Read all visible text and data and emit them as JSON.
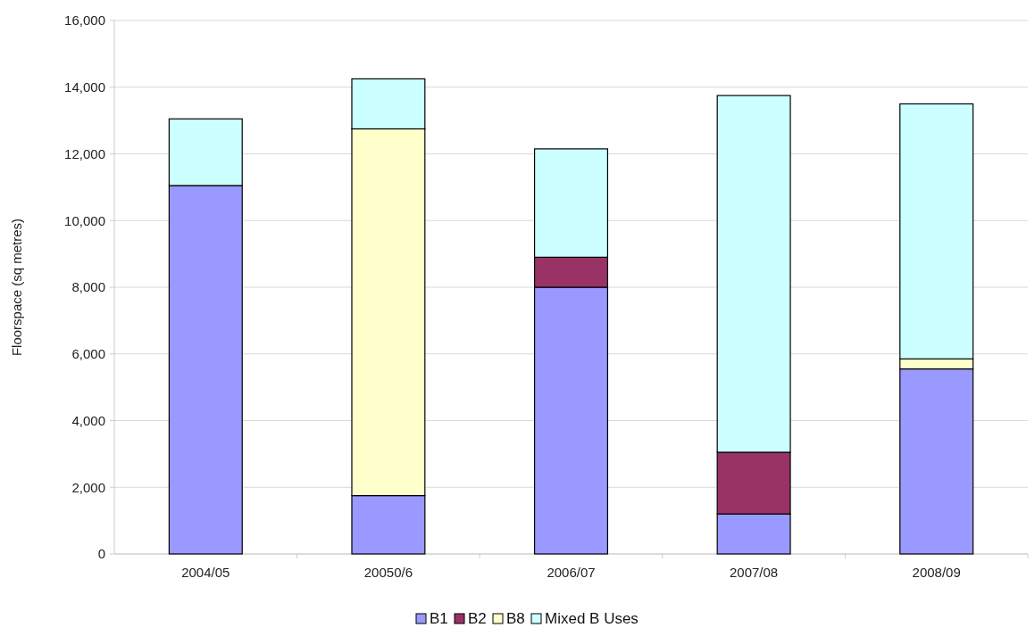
{
  "chart_data": {
    "type": "bar",
    "stacked": true,
    "ylabel": "Floorspace (sq metres)",
    "categories": [
      "2004/05",
      "20050/6",
      "2006/07",
      "2007/08",
      "2008/09"
    ],
    "series": [
      {
        "name": "B1",
        "color": "#9999ff",
        "values": [
          11050,
          1750,
          8000,
          1200,
          5550
        ]
      },
      {
        "name": "B2",
        "color": "#993366",
        "values": [
          0,
          0,
          900,
          1850,
          0
        ]
      },
      {
        "name": "B8",
        "color": "#ffffcc",
        "values": [
          0,
          11000,
          0,
          0,
          300
        ]
      },
      {
        "name": "Mixed B Uses",
        "color": "#ccffff",
        "values": [
          2000,
          1500,
          3250,
          10700,
          7650
        ]
      }
    ],
    "ylim": [
      0,
      16000
    ],
    "yticks": [
      {
        "value": 0,
        "label": "0"
      },
      {
        "value": 2000,
        "label": "2,000"
      },
      {
        "value": 4000,
        "label": "4,000"
      },
      {
        "value": 6000,
        "label": "6,000"
      },
      {
        "value": 8000,
        "label": "8,000"
      },
      {
        "value": 10000,
        "label": "10,000"
      },
      {
        "value": 12000,
        "label": "12,000"
      },
      {
        "value": 14000,
        "label": "14,000"
      },
      {
        "value": 16000,
        "label": "16,000"
      }
    ],
    "grid": "y",
    "legend": "bottom"
  }
}
